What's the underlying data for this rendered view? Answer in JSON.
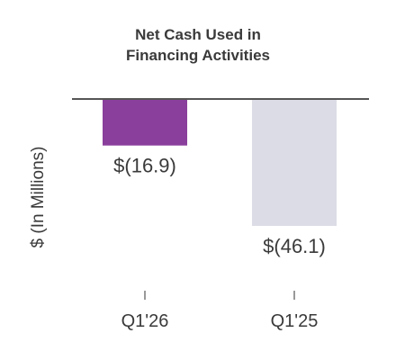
{
  "chart_data": {
    "type": "bar",
    "title_lines": [
      "Net Cash Used in",
      "Financing Activities"
    ],
    "ylabel": "$ (In Millions)",
    "xlabel": "",
    "categories": [
      "Q1'26",
      "Q1'25"
    ],
    "values": [
      -16.9,
      -46.1
    ],
    "data_labels": [
      "$(16.9)",
      "$(46.1)"
    ],
    "colors": [
      "#8a3f9c",
      "#dcdce6"
    ],
    "ylim": [
      -50,
      0
    ],
    "grid": false,
    "legend": "none",
    "baseline_color": "#555555",
    "tick_color": "#777777"
  }
}
